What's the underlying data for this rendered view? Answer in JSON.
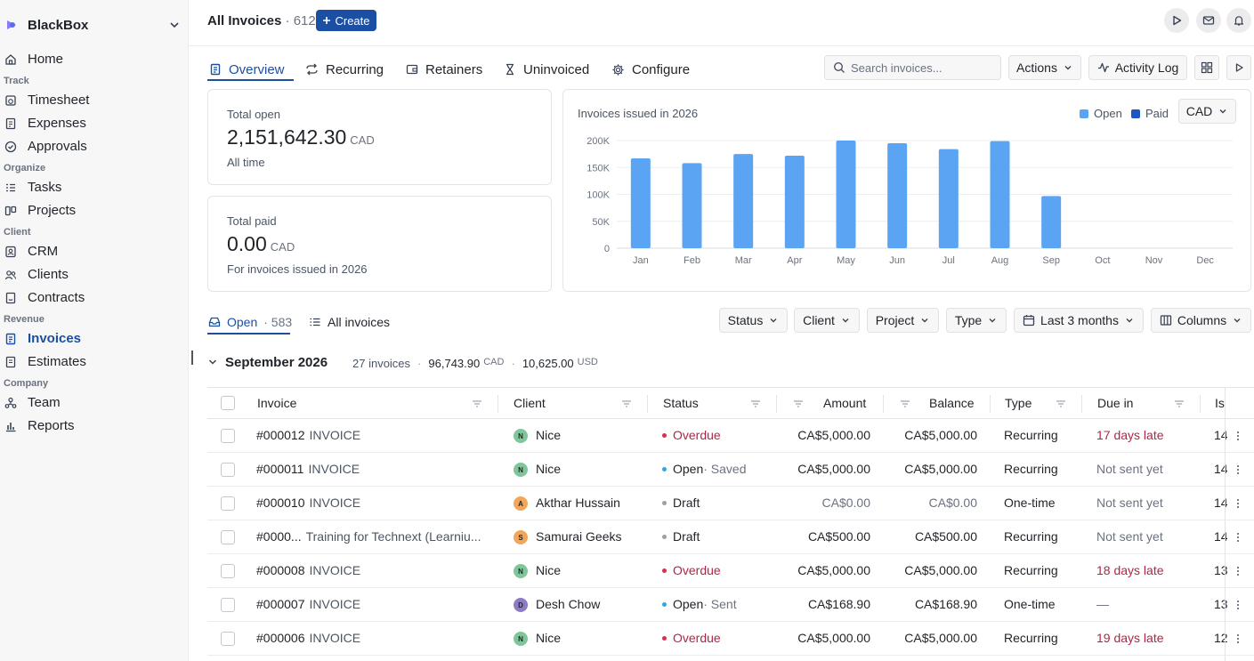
{
  "sidebar": {
    "workspace": "BlackBox",
    "home": "Home",
    "sections": {
      "track": "Track",
      "organize": "Organize",
      "client": "Client",
      "revenue": "Revenue",
      "company": "Company"
    },
    "items": {
      "timesheet": "Timesheet",
      "expenses": "Expenses",
      "approvals": "Approvals",
      "tasks": "Tasks",
      "projects": "Projects",
      "crm": "CRM",
      "clients": "Clients",
      "contracts": "Contracts",
      "invoices": "Invoices",
      "estimates": "Estimates",
      "team": "Team",
      "reports": "Reports"
    }
  },
  "header": {
    "title": "All Invoices",
    "count": "· 612",
    "create_label": "Create"
  },
  "tabs": {
    "overview": "Overview",
    "recurring": "Recurring",
    "retainers": "Retainers",
    "uninvoiced": "Uninvoiced",
    "configure": "Configure"
  },
  "toolbar": {
    "search_placeholder": "Search invoices...",
    "actions": "Actions",
    "activity_log": "Activity Log"
  },
  "cards": {
    "total_open": {
      "label": "Total open",
      "value": "2,151,642.30",
      "currency": "CAD",
      "sub": "All time"
    },
    "total_paid": {
      "label": "Total paid",
      "value": "0.00",
      "currency": "CAD",
      "sub": "For invoices issued in 2026"
    }
  },
  "chart_data": {
    "type": "bar",
    "title": "Invoices issued in 2026",
    "categories": [
      "Jan",
      "Feb",
      "Mar",
      "Apr",
      "May",
      "Jun",
      "Jul",
      "Aug",
      "Sep",
      "Oct",
      "Nov",
      "Dec"
    ],
    "series": [
      {
        "name": "Open",
        "values": [
          167000,
          158000,
          175000,
          172000,
          200000,
          195000,
          184000,
          199000,
          97000,
          0,
          0,
          0
        ]
      },
      {
        "name": "Paid",
        "values": [
          0,
          0,
          0,
          0,
          0,
          0,
          0,
          0,
          0,
          0,
          0,
          0
        ]
      }
    ],
    "yticks": [
      "0",
      "50K",
      "100K",
      "150K",
      "200K"
    ],
    "ytick_values": [
      0,
      50000,
      100000,
      150000,
      200000
    ],
    "ylim": [
      0,
      200000
    ],
    "grid": true,
    "legend": "top-right",
    "currency": "CAD",
    "colors": {
      "open": "#5ba4f3",
      "paid": "#1e56c4"
    }
  },
  "subtabs": {
    "open": "Open",
    "open_count": "· 583",
    "all": "All invoices"
  },
  "filters": {
    "status": "Status",
    "client": "Client",
    "project": "Project",
    "type": "Type",
    "date": "Last 3 months",
    "columns": "Columns"
  },
  "group": {
    "title": "September 2026",
    "invoices": "27 invoices",
    "cad_total": "96,743.90",
    "cad": "CAD",
    "usd_total": "10,625.00",
    "usd": "USD"
  },
  "table": {
    "columns": {
      "invoice": "Invoice",
      "client": "Client",
      "status": "Status",
      "amount": "Amount",
      "balance": "Balance",
      "type": "Type",
      "due": "Due in",
      "issued": "Is"
    },
    "rows": [
      {
        "number": "#000012",
        "desc": "INVOICE",
        "avatar": "N",
        "avatar_color": "#7fc79a",
        "client": "Nice",
        "status": "Overdue",
        "status_color": "#d6304a",
        "status_sub": "",
        "amount": "CA$5,000.00",
        "balance": "CA$5,000.00",
        "type": "Recurring",
        "due": "17 days late",
        "due_style": "red",
        "issued": "14"
      },
      {
        "number": "#000011",
        "desc": "INVOICE",
        "avatar": "N",
        "avatar_color": "#7fc79a",
        "client": "Nice",
        "status": "Open",
        "status_color": "#2ea8dd",
        "status_sub": "· Saved",
        "amount": "CA$5,000.00",
        "balance": "CA$5,000.00",
        "type": "Recurring",
        "due": "Not sent yet",
        "due_style": "muted",
        "issued": "14"
      },
      {
        "number": "#000010",
        "desc": "INVOICE",
        "avatar": "A",
        "avatar_color": "#f2a65a",
        "client": "Akthar Hussain",
        "status": "Draft",
        "status_color": "#9aa0a6",
        "status_sub": "",
        "amount": "CA$0.00",
        "balance": "CA$0.00",
        "type": "One-time",
        "due": "Not sent yet",
        "due_style": "muted",
        "issued": "14"
      },
      {
        "number": "#0000...",
        "desc": "Training for Technext (Learniu...",
        "avatar": "S",
        "avatar_color": "#f2a65a",
        "client": "Samurai Geeks",
        "status": "Draft",
        "status_color": "#9aa0a6",
        "status_sub": "",
        "amount": "CA$500.00",
        "balance": "CA$500.00",
        "type": "Recurring",
        "due": "Not sent yet",
        "due_style": "muted",
        "issued": "14"
      },
      {
        "number": "#000008",
        "desc": "INVOICE",
        "avatar": "N",
        "avatar_color": "#7fc79a",
        "client": "Nice",
        "status": "Overdue",
        "status_color": "#d6304a",
        "status_sub": "",
        "amount": "CA$5,000.00",
        "balance": "CA$5,000.00",
        "type": "Recurring",
        "due": "18 days late",
        "due_style": "red",
        "issued": "13"
      },
      {
        "number": "#000007",
        "desc": "INVOICE",
        "avatar": "D",
        "avatar_color": "#8e7cc3",
        "client": "Desh Chow",
        "status": "Open",
        "status_color": "#2ea8dd",
        "status_sub": "· Sent",
        "amount": "CA$168.90",
        "balance": "CA$168.90",
        "type": "One-time",
        "due": "—",
        "due_style": "muted",
        "issued": "13"
      },
      {
        "number": "#000006",
        "desc": "INVOICE",
        "avatar": "N",
        "avatar_color": "#7fc79a",
        "client": "Nice",
        "status": "Overdue",
        "status_color": "#d6304a",
        "status_sub": "",
        "amount": "CA$5,000.00",
        "balance": "CA$5,000.00",
        "type": "Recurring",
        "due": "19 days late",
        "due_style": "red",
        "issued": "12"
      }
    ]
  }
}
